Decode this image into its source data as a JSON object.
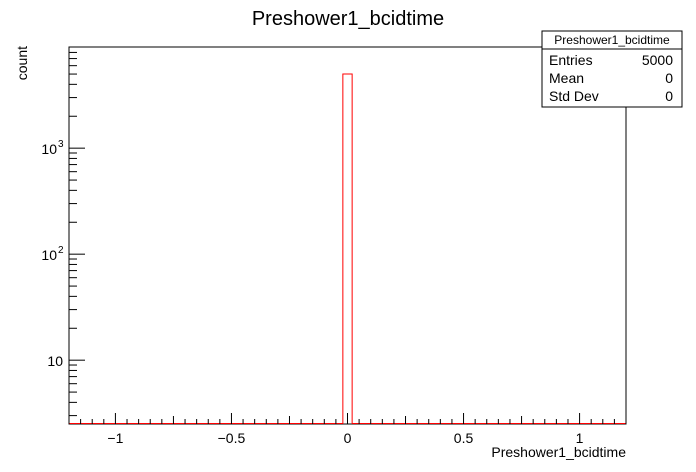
{
  "chart_data": {
    "type": "histogram",
    "title": "Preshower1_bcidtime",
    "xlabel": "Preshower1_bcidtime",
    "ylabel": "count",
    "xlim": [
      -1.2,
      1.2
    ],
    "ylim": [
      2.5,
      9000
    ],
    "yscale": "log",
    "x_ticks": [
      {
        "v": -1,
        "label": "−1"
      },
      {
        "v": -0.5,
        "label": "−0.5"
      },
      {
        "v": 0,
        "label": "0"
      },
      {
        "v": 0.5,
        "label": "0.5"
      },
      {
        "v": 1,
        "label": "1"
      }
    ],
    "y_ticks": [
      {
        "v": 10,
        "base": "10",
        "exp": ""
      },
      {
        "v": 100,
        "base": "10",
        "exp": "2"
      },
      {
        "v": 1000,
        "base": "10",
        "exp": "3"
      }
    ],
    "bins": [
      {
        "x0": -0.02,
        "x1": 0.02,
        "count": 5000
      }
    ],
    "line_color": "#ff0000",
    "grid": false,
    "legend": "none"
  },
  "stats_box": {
    "title": "Preshower1_bcidtime",
    "rows": [
      {
        "label": "Entries",
        "value": "5000"
      },
      {
        "label": "Mean",
        "value": "0"
      },
      {
        "label": "Std Dev",
        "value": "0"
      }
    ]
  }
}
